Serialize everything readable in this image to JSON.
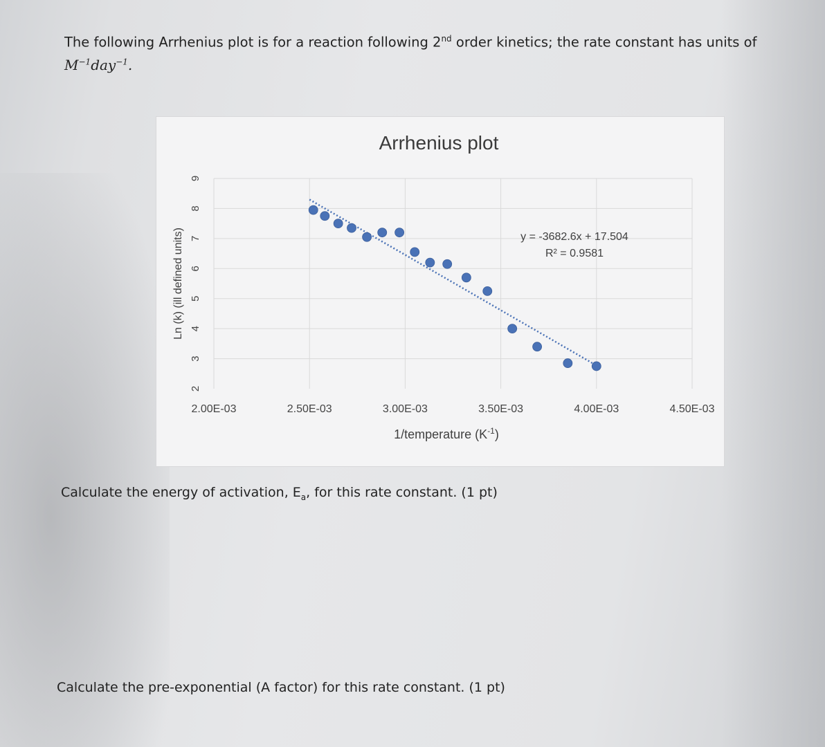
{
  "intro": {
    "text_before": "The following Arrhenius plot is for a reaction following 2",
    "ordinal_sup": "nd",
    "text_after": " order kinetics; the rate constant has units of",
    "units_text": "M",
    "units_exp1": "−1",
    "units_day": "day",
    "units_exp2": "−1",
    "units_period": "."
  },
  "chart_data": {
    "type": "scatter",
    "title": "Arrhenius plot",
    "xlabel": "1/temperature (K",
    "xlabel_exp": "-1",
    "xlabel_close": ")",
    "ylabel": "Ln (k) (ill defined units)",
    "xlim": [
      0.002,
      0.0045
    ],
    "ylim": [
      2,
      9
    ],
    "x_ticks": [
      0.002,
      0.0025,
      0.003,
      0.0035,
      0.004,
      0.0045
    ],
    "x_tick_labels": [
      "2.00E-03",
      "2.50E-03",
      "3.00E-03",
      "3.50E-03",
      "4.00E-03",
      "4.50E-03"
    ],
    "y_ticks": [
      2,
      3,
      4,
      5,
      6,
      7,
      8,
      9
    ],
    "y_tick_labels": [
      "2",
      "3",
      "4",
      "5",
      "6",
      "7",
      "8",
      "9"
    ],
    "grid": true,
    "legend": "none",
    "point_color": "#4a72b6",
    "trendline_color": "#4a72b6",
    "points": [
      {
        "x": 0.00252,
        "y": 7.95
      },
      {
        "x": 0.00258,
        "y": 7.75
      },
      {
        "x": 0.00265,
        "y": 7.5
      },
      {
        "x": 0.00272,
        "y": 7.35
      },
      {
        "x": 0.0028,
        "y": 7.05
      },
      {
        "x": 0.00288,
        "y": 7.2
      },
      {
        "x": 0.00297,
        "y": 7.2
      },
      {
        "x": 0.00305,
        "y": 6.55
      },
      {
        "x": 0.00313,
        "y": 6.2
      },
      {
        "x": 0.00322,
        "y": 6.15
      },
      {
        "x": 0.00332,
        "y": 5.7
      },
      {
        "x": 0.00343,
        "y": 5.25
      },
      {
        "x": 0.00356,
        "y": 4.0
      },
      {
        "x": 0.00369,
        "y": 3.4
      },
      {
        "x": 0.00385,
        "y": 2.85
      },
      {
        "x": 0.004,
        "y": 2.75
      }
    ],
    "trendline": {
      "slope": -3682.6,
      "intercept": 17.504,
      "x_range": [
        0.0025,
        0.004
      ],
      "equation_label": "y = -3682.6x + 17.504",
      "r2_label": "R² = 0.9581"
    }
  },
  "questions": {
    "q1_before": "Calculate the energy of activation, E",
    "q1_sub": "a",
    "q1_after": ", for this rate constant. (1 pt)",
    "q2": "Calculate the pre-exponential (A factor) for this rate constant. (1 pt)"
  }
}
